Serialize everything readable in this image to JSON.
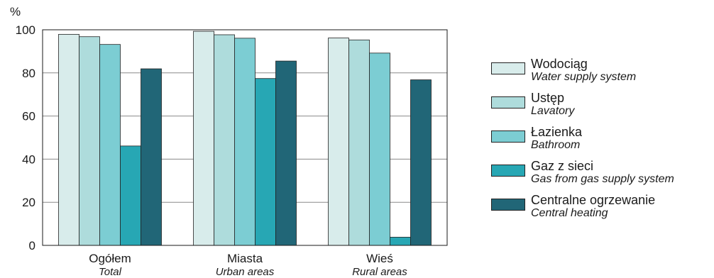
{
  "chart_data": {
    "type": "bar",
    "ylabel": "%",
    "ylim": [
      0,
      100
    ],
    "yticks": [
      0,
      20,
      40,
      60,
      80,
      100
    ],
    "grid": true,
    "legend_position": "right",
    "categories": [
      {
        "label": "Ogółem",
        "label_en": "Total"
      },
      {
        "label": "Miasta",
        "label_en": "Urban areas"
      },
      {
        "label": "Wieś",
        "label_en": "Rural areas"
      }
    ],
    "series": [
      {
        "name": "Wodociąg",
        "name_en": "Water supply system",
        "color": "#d8eceb",
        "values": [
          97.9,
          99.3,
          96.2
        ]
      },
      {
        "name": "Ustęp",
        "name_en": "Lavatory",
        "color": "#aedcdc",
        "values": [
          96.8,
          97.7,
          95.3
        ]
      },
      {
        "name": "Łazienka",
        "name_en": "Bathroom",
        "color": "#7ccdd3",
        "values": [
          93.2,
          96.1,
          89.2
        ]
      },
      {
        "name": "Gaz z sieci",
        "name_en": "Gas from gas supply system",
        "color": "#27a7b4",
        "values": [
          46.1,
          77.4,
          3.8
        ]
      },
      {
        "name": "Centralne ogrzewanie",
        "name_en": "Central heating",
        "color": "#216677",
        "values": [
          81.9,
          85.5,
          76.8
        ]
      }
    ]
  }
}
